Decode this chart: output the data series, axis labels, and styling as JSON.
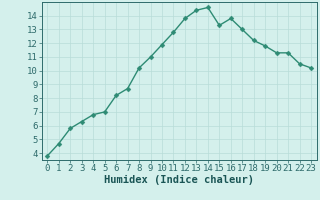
{
  "x": [
    0,
    1,
    2,
    3,
    4,
    5,
    6,
    7,
    8,
    9,
    10,
    11,
    12,
    13,
    14,
    15,
    16,
    17,
    18,
    19,
    20,
    21,
    22,
    23
  ],
  "y": [
    3.8,
    4.7,
    5.8,
    6.3,
    6.8,
    7.0,
    8.2,
    8.7,
    10.2,
    11.0,
    11.9,
    12.8,
    13.8,
    14.4,
    14.6,
    13.3,
    13.8,
    13.0,
    12.2,
    11.8,
    11.3,
    11.3,
    10.5,
    10.2
  ],
  "line_color": "#2e8b74",
  "marker": "D",
  "marker_size": 2.5,
  "background_color": "#d4f0ec",
  "grid_color": "#b8ddd8",
  "xlabel": "Humidex (Indice chaleur)",
  "xlim": [
    -0.5,
    23.5
  ],
  "ylim": [
    3.5,
    15.0
  ],
  "yticks": [
    4,
    5,
    6,
    7,
    8,
    9,
    10,
    11,
    12,
    13,
    14
  ],
  "xticks": [
    0,
    1,
    2,
    3,
    4,
    5,
    6,
    7,
    8,
    9,
    10,
    11,
    12,
    13,
    14,
    15,
    16,
    17,
    18,
    19,
    20,
    21,
    22,
    23
  ],
  "tick_label_fontsize": 6.5,
  "xlabel_fontsize": 7.5,
  "line_width": 1.0,
  "tick_color": "#2e6b6b",
  "spine_color": "#2e6b6b",
  "label_color": "#1a5555"
}
